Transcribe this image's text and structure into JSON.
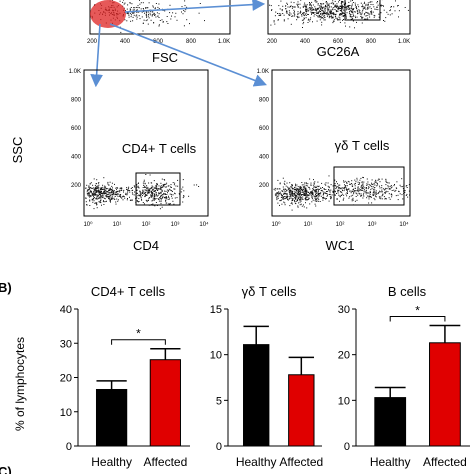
{
  "flow": {
    "top_left_xlabel": "FSC",
    "top_right_xlabel": "GC26A",
    "ylabel": "SSC",
    "top_ticks": [
      "200",
      "400",
      "600",
      "800",
      "1.0K"
    ],
    "y_ticks": [
      "1.0K",
      "800",
      "600",
      "400",
      "200"
    ],
    "x_log_ticks": [
      "10⁰",
      "10¹",
      "10²",
      "10³",
      "10⁴"
    ],
    "panels": [
      {
        "gate_label": "CD4+ T cells",
        "xlabel": "CD4"
      },
      {
        "gate_label": "γδ T cells",
        "xlabel": "WC1"
      }
    ]
  },
  "section_labels": {
    "b": "B)",
    "c": "C)"
  },
  "colors": {
    "healthy": "#000000",
    "affected": "#e00000",
    "arrow": "#5b8fd4",
    "dots": "#111111"
  },
  "chart_data": [
    {
      "type": "bar",
      "title": "CD4+ T cells",
      "categories": [
        "Healthy",
        "Affected"
      ],
      "values": [
        16.5,
        25.2
      ],
      "errors": [
        2.5,
        3.2
      ],
      "ylabel": "% of lymphocytes",
      "ylim": [
        0,
        40
      ],
      "yticks": [
        0,
        10,
        20,
        30,
        40
      ],
      "significance": "*"
    },
    {
      "type": "bar",
      "title": "γδ T cells",
      "categories": [
        "Healthy",
        "Affected"
      ],
      "values": [
        11.1,
        7.8
      ],
      "errors": [
        2.0,
        1.9
      ],
      "ylabel": "",
      "ylim": [
        0,
        15
      ],
      "yticks": [
        0,
        5,
        10,
        15
      ],
      "significance": ""
    },
    {
      "type": "bar",
      "title": "B cells",
      "categories": [
        "Healthy",
        "Affected"
      ],
      "values": [
        10.6,
        22.6
      ],
      "errors": [
        2.2,
        3.8
      ],
      "ylabel": "",
      "ylim": [
        0,
        30
      ],
      "yticks": [
        0,
        10,
        20,
        30
      ],
      "significance": "*"
    }
  ]
}
